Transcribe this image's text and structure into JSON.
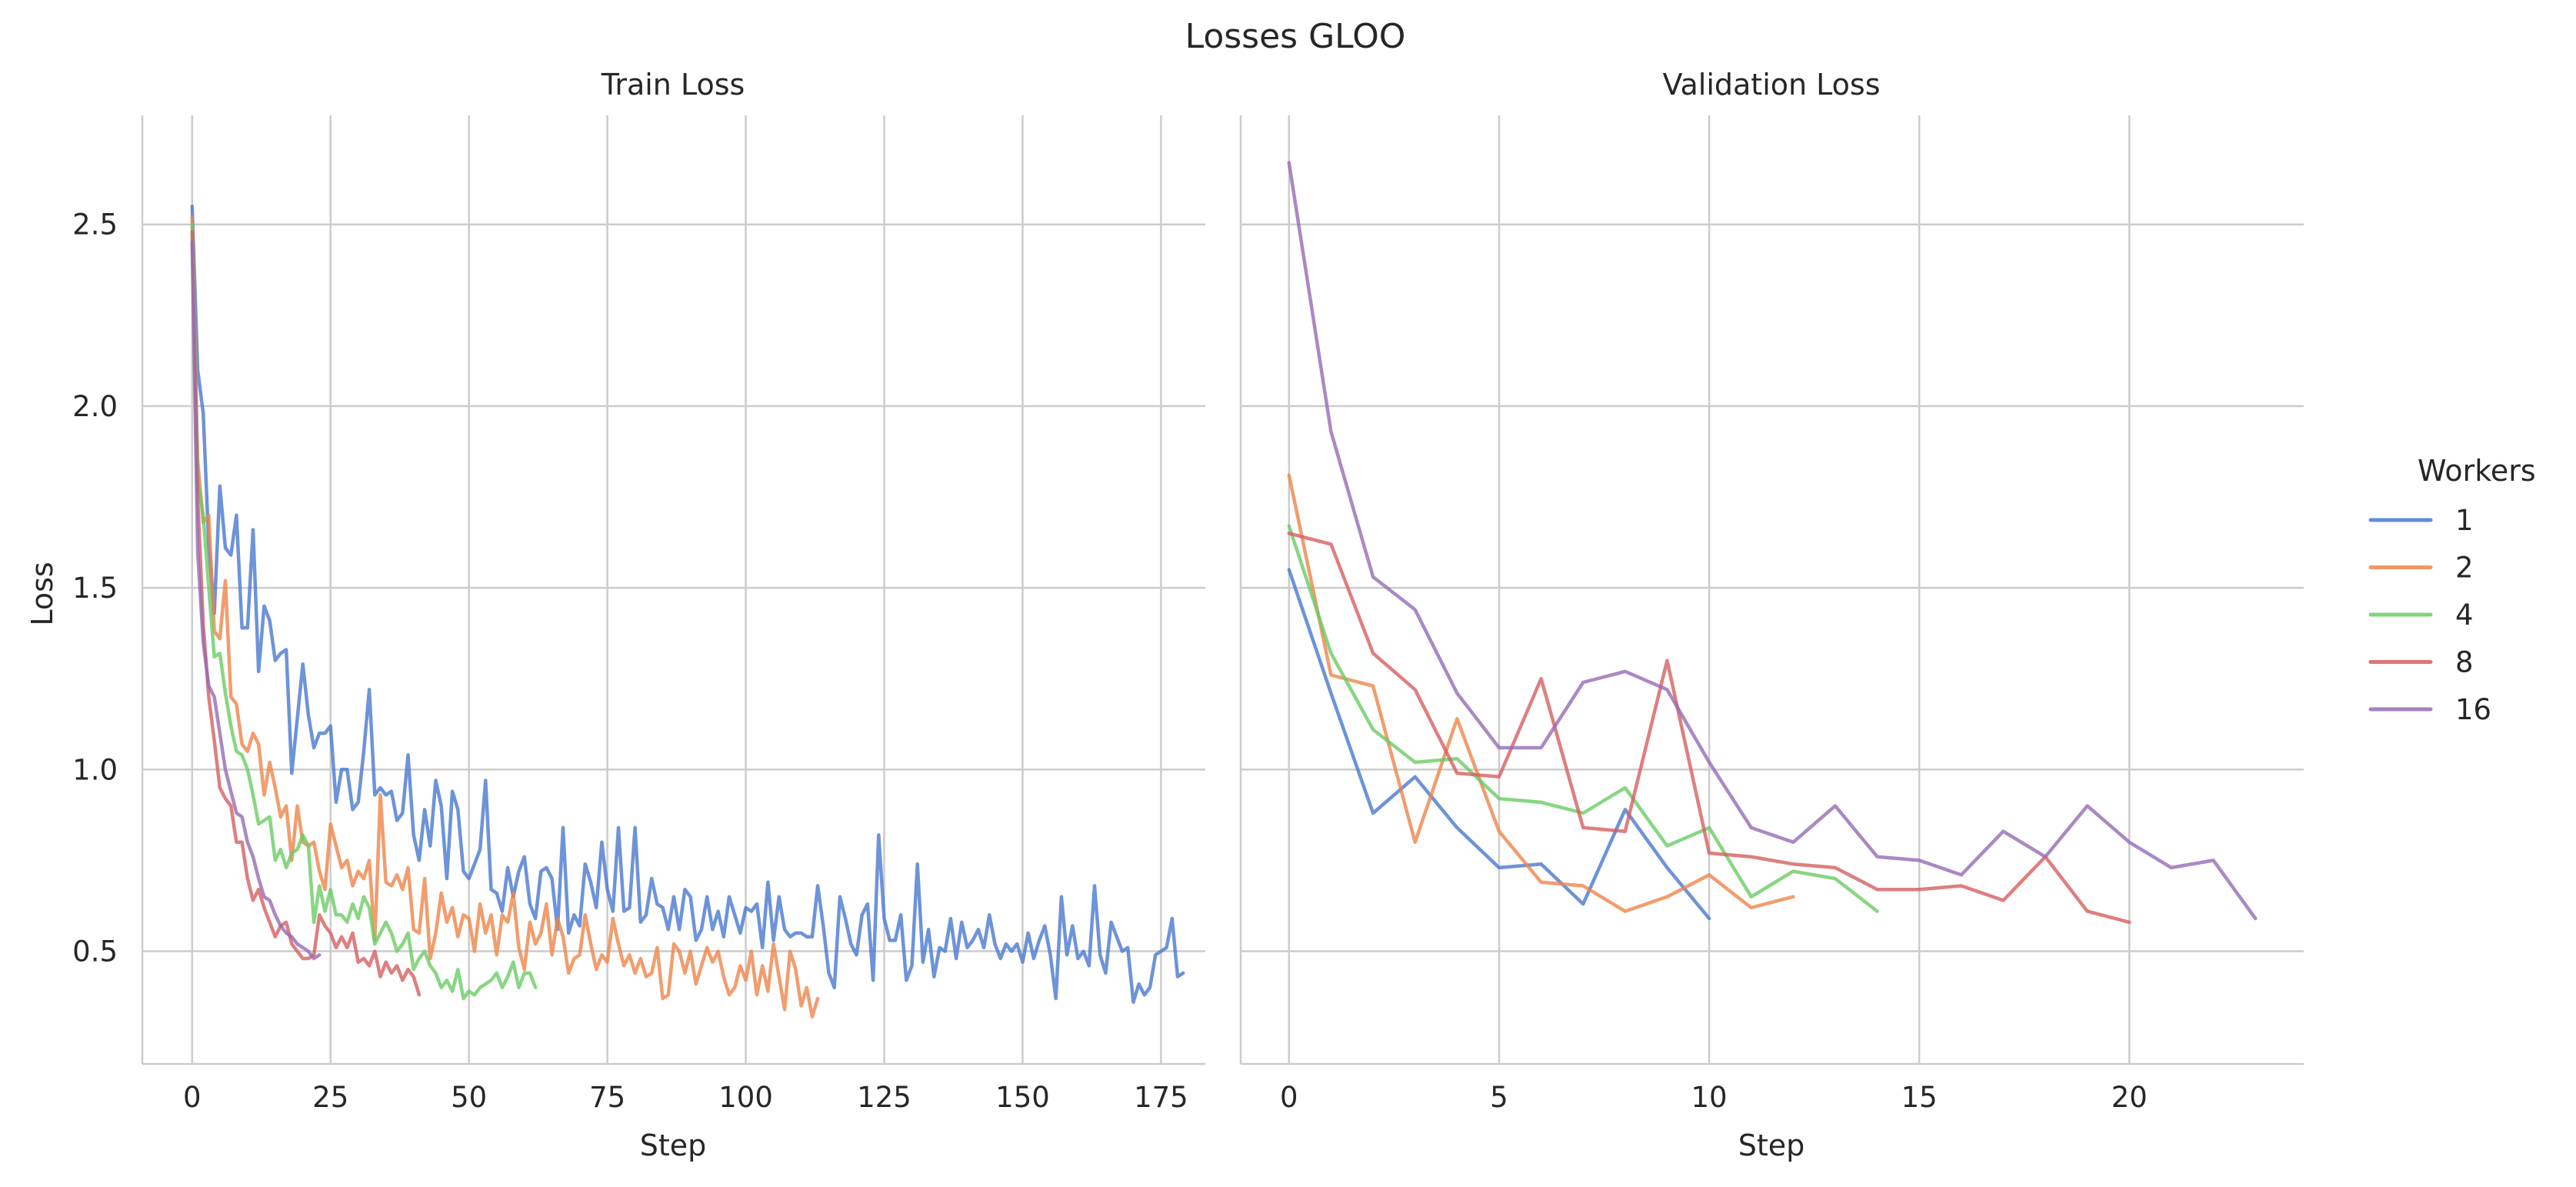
{
  "figure": {
    "title": "Losses GLOO",
    "legend": {
      "title": "Workers",
      "placement": "right",
      "entries": [
        {
          "label": "1",
          "color": "#4878d0"
        },
        {
          "label": "2",
          "color": "#ee854a"
        },
        {
          "label": "4",
          "color": "#6acc64"
        },
        {
          "label": "8",
          "color": "#d65f5f"
        },
        {
          "label": "16",
          "color": "#956cb4"
        }
      ]
    }
  },
  "chart_data": [
    {
      "type": "line",
      "title": "Train Loss",
      "xlabel": "Step",
      "ylabel": "Loss",
      "xlim": [
        -9,
        183
      ],
      "ylim": [
        0.19,
        2.8
      ],
      "xticks": [
        0,
        25,
        50,
        75,
        100,
        125,
        150,
        175
      ],
      "yticks": [
        0.5,
        1.0,
        1.5,
        2.0,
        2.5
      ],
      "grid": true,
      "series": [
        {
          "name": "1",
          "color": "#4878d0",
          "x_start": 0,
          "x_step": 1,
          "y": [
            2.55,
            2.1,
            1.98,
            1.62,
            1.43,
            1.78,
            1.61,
            1.59,
            1.7,
            1.39,
            1.39,
            1.66,
            1.27,
            1.45,
            1.41,
            1.3,
            1.32,
            1.33,
            0.99,
            1.14,
            1.29,
            1.15,
            1.06,
            1.1,
            1.1,
            1.12,
            0.91,
            1.0,
            1.0,
            0.89,
            0.91,
            1.05,
            1.22,
            0.93,
            0.95,
            0.93,
            0.94,
            0.86,
            0.88,
            1.04,
            0.82,
            0.75,
            0.89,
            0.79,
            0.97,
            0.9,
            0.7,
            0.94,
            0.89,
            0.72,
            0.7,
            0.74,
            0.78,
            0.97,
            0.67,
            0.66,
            0.61,
            0.73,
            0.65,
            0.72,
            0.76,
            0.63,
            0.59,
            0.72,
            0.73,
            0.7,
            0.56,
            0.84,
            0.55,
            0.6,
            0.57,
            0.74,
            0.69,
            0.62,
            0.8,
            0.67,
            0.61,
            0.84,
            0.61,
            0.62,
            0.84,
            0.58,
            0.6,
            0.7,
            0.63,
            0.62,
            0.56,
            0.65,
            0.56,
            0.67,
            0.65,
            0.53,
            0.56,
            0.65,
            0.56,
            0.61,
            0.54,
            0.65,
            0.6,
            0.55,
            0.62,
            0.61,
            0.63,
            0.51,
            0.69,
            0.53,
            0.65,
            0.56,
            0.54,
            0.55,
            0.55,
            0.54,
            0.54,
            0.68,
            0.57,
            0.44,
            0.4,
            0.65,
            0.59,
            0.52,
            0.49,
            0.6,
            0.63,
            0.42,
            0.82,
            0.59,
            0.53,
            0.53,
            0.6,
            0.42,
            0.46,
            0.74,
            0.47,
            0.56,
            0.43,
            0.51,
            0.5,
            0.59,
            0.48,
            0.58,
            0.51,
            0.53,
            0.56,
            0.51,
            0.6,
            0.52,
            0.48,
            0.52,
            0.5,
            0.52,
            0.47,
            0.55,
            0.48,
            0.53,
            0.57,
            0.49,
            0.37,
            0.65,
            0.49,
            0.57,
            0.48,
            0.5,
            0.46,
            0.68,
            0.49,
            0.44,
            0.58,
            0.54,
            0.5,
            0.51,
            0.36,
            0.41,
            0.38,
            0.4,
            0.49,
            0.5,
            0.51,
            0.59,
            0.43,
            0.44
          ]
        },
        {
          "name": "2",
          "color": "#ee854a",
          "x_start": 0,
          "x_step": 1,
          "y": [
            2.52,
            1.85,
            1.68,
            1.7,
            1.38,
            1.36,
            1.52,
            1.2,
            1.18,
            1.07,
            1.05,
            1.1,
            1.07,
            0.93,
            1.02,
            0.95,
            0.87,
            0.9,
            0.75,
            0.9,
            0.8,
            0.79,
            0.8,
            0.72,
            0.67,
            0.85,
            0.79,
            0.73,
            0.75,
            0.68,
            0.72,
            0.7,
            0.75,
            0.53,
            0.93,
            0.69,
            0.68,
            0.71,
            0.67,
            0.73,
            0.56,
            0.55,
            0.7,
            0.48,
            0.55,
            0.66,
            0.58,
            0.62,
            0.54,
            0.6,
            0.59,
            0.5,
            0.63,
            0.55,
            0.6,
            0.49,
            0.6,
            0.58,
            0.66,
            0.51,
            0.45,
            0.58,
            0.52,
            0.55,
            0.63,
            0.49,
            0.59,
            0.54,
            0.44,
            0.48,
            0.49,
            0.6,
            0.52,
            0.45,
            0.49,
            0.47,
            0.59,
            0.52,
            0.46,
            0.49,
            0.44,
            0.48,
            0.43,
            0.44,
            0.51,
            0.37,
            0.38,
            0.52,
            0.5,
            0.44,
            0.5,
            0.41,
            0.46,
            0.51,
            0.47,
            0.5,
            0.43,
            0.38,
            0.4,
            0.46,
            0.42,
            0.5,
            0.38,
            0.46,
            0.39,
            0.52,
            0.43,
            0.34,
            0.5,
            0.45,
            0.35,
            0.4,
            0.32,
            0.37
          ]
        },
        {
          "name": "4",
          "color": "#6acc64",
          "x_start": 0,
          "x_step": 1,
          "y": [
            2.5,
            1.8,
            1.7,
            1.5,
            1.31,
            1.32,
            1.21,
            1.12,
            1.05,
            1.04,
            1.0,
            0.93,
            0.85,
            0.86,
            0.87,
            0.75,
            0.78,
            0.73,
            0.77,
            0.78,
            0.82,
            0.79,
            0.58,
            0.68,
            0.61,
            0.67,
            0.6,
            0.6,
            0.58,
            0.63,
            0.59,
            0.65,
            0.62,
            0.52,
            0.55,
            0.58,
            0.55,
            0.5,
            0.52,
            0.55,
            0.45,
            0.48,
            0.5,
            0.46,
            0.44,
            0.4,
            0.42,
            0.39,
            0.45,
            0.37,
            0.39,
            0.38,
            0.4,
            0.41,
            0.42,
            0.44,
            0.4,
            0.43,
            0.47,
            0.4,
            0.44,
            0.44,
            0.4
          ]
        },
        {
          "name": "8",
          "color": "#d65f5f",
          "x_start": 0,
          "x_step": 1,
          "y": [
            2.48,
            1.75,
            1.4,
            1.2,
            1.08,
            0.95,
            0.92,
            0.9,
            0.8,
            0.8,
            0.7,
            0.64,
            0.67,
            0.62,
            0.58,
            0.54,
            0.57,
            0.58,
            0.52,
            0.5,
            0.48,
            0.48,
            0.49,
            0.6,
            0.57,
            0.55,
            0.51,
            0.54,
            0.51,
            0.55,
            0.47,
            0.48,
            0.46,
            0.5,
            0.43,
            0.47,
            0.44,
            0.46,
            0.42,
            0.45,
            0.43,
            0.38
          ]
        },
        {
          "name": "16",
          "color": "#956cb4",
          "x_start": 0,
          "x_step": 1,
          "y": [
            2.45,
            1.6,
            1.35,
            1.23,
            1.2,
            1.1,
            1.0,
            0.94,
            0.88,
            0.87,
            0.8,
            0.76,
            0.7,
            0.65,
            0.64,
            0.6,
            0.57,
            0.55,
            0.54,
            0.52,
            0.51,
            0.5,
            0.48,
            0.49
          ]
        }
      ]
    },
    {
      "type": "line",
      "title": "Validation Loss",
      "xlabel": "Step",
      "ylabel": "",
      "xlim": [
        -1.15,
        24.15
      ],
      "ylim": [
        0.19,
        2.8
      ],
      "xticks": [
        0,
        5,
        10,
        15,
        20
      ],
      "yticks": [
        0.5,
        1.0,
        1.5,
        2.0,
        2.5
      ],
      "grid": true,
      "series": [
        {
          "name": "1",
          "color": "#4878d0",
          "x_start": 0,
          "x_step": 1,
          "y": [
            1.55,
            1.21,
            0.88,
            0.98,
            0.84,
            0.73,
            0.74,
            0.63,
            0.89,
            0.73,
            0.59
          ]
        },
        {
          "name": "2",
          "color": "#ee854a",
          "x_start": 0,
          "x_step": 1,
          "y": [
            1.81,
            1.26,
            1.23,
            0.8,
            1.14,
            0.83,
            0.69,
            0.68,
            0.61,
            0.65,
            0.71,
            0.62,
            0.65
          ]
        },
        {
          "name": "4",
          "color": "#6acc64",
          "x_start": 0,
          "x_step": 1,
          "y": [
            1.67,
            1.32,
            1.11,
            1.02,
            1.03,
            0.92,
            0.91,
            0.88,
            0.95,
            0.79,
            0.84,
            0.65,
            0.72,
            0.7,
            0.61
          ]
        },
        {
          "name": "8",
          "color": "#d65f5f",
          "x_start": 0,
          "x_step": 1,
          "y": [
            1.65,
            1.62,
            1.32,
            1.22,
            0.99,
            0.98,
            1.25,
            0.84,
            0.83,
            1.3,
            0.77,
            0.76,
            0.74,
            0.73,
            0.67,
            0.67,
            0.68,
            0.64,
            0.76,
            0.61,
            0.58
          ]
        },
        {
          "name": "16",
          "color": "#956cb4",
          "x_start": 0,
          "x_step": 1,
          "y": [
            2.67,
            1.93,
            1.53,
            1.44,
            1.21,
            1.06,
            1.06,
            1.24,
            1.27,
            1.22,
            1.02,
            0.84,
            0.8,
            0.9,
            0.76,
            0.75,
            0.71,
            0.83,
            0.76,
            0.9,
            0.8,
            0.73,
            0.75,
            0.59
          ]
        }
      ]
    }
  ]
}
